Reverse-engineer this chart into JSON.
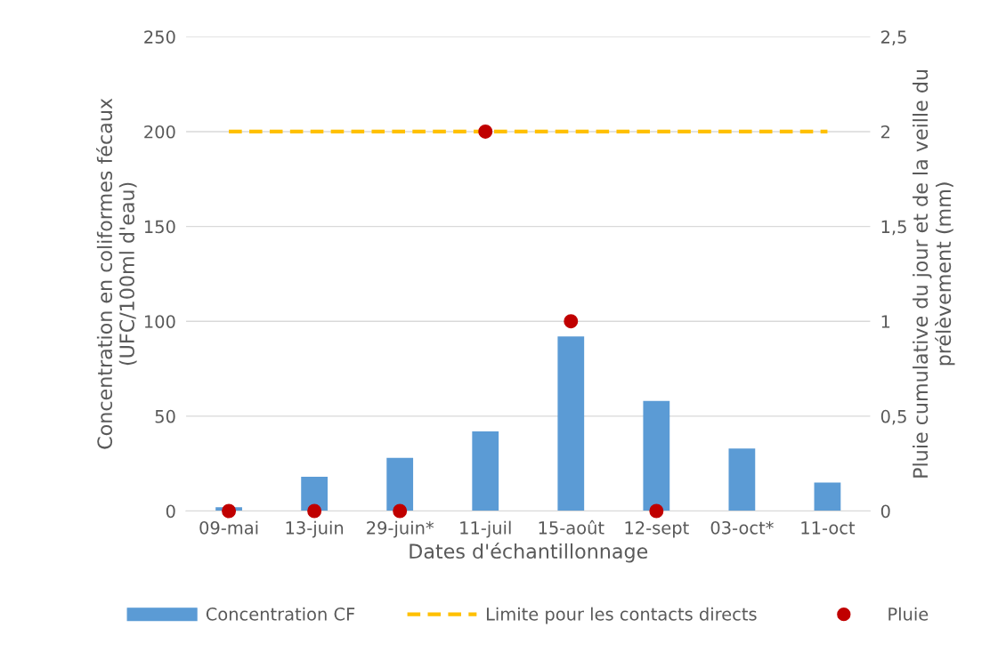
{
  "chart_data": {
    "type": "bar",
    "xlabel": "Dates d'échantillonnage",
    "ylabel": "Concentration en coliformes fécaux\n(UFC/100ml d'eau)",
    "y2label": "Pluie cumulative du jour et de la veille du\nprélèvement (mm)",
    "categories": [
      "09-mai",
      "13-juin",
      "29-juin*",
      "11-juil",
      "15-août",
      "12-sept",
      "03-oct*",
      "11-oct"
    ],
    "series": [
      {
        "name": "Concentration CF",
        "color": "#5b9bd5",
        "values": [
          2,
          18,
          28,
          42,
          92,
          58,
          33,
          15
        ]
      },
      {
        "name": "Limite pour les contacts directs",
        "type": "line",
        "color": "#ffc000",
        "line_style": "dashed",
        "marker": "none",
        "values": [
          200,
          200,
          200,
          200,
          200,
          200,
          200,
          200
        ]
      },
      {
        "name": "Pluie",
        "type": "scatter",
        "color": "#c00000",
        "marker": "circle",
        "axis": "y2",
        "values": [
          0,
          0,
          0,
          2,
          1,
          0,
          null,
          null
        ]
      }
    ],
    "ylim": [
      0,
      250
    ],
    "yticks": [
      0,
      50,
      100,
      150,
      200,
      250
    ],
    "y2lim": [
      0,
      2.5
    ],
    "y2ticks": [
      0,
      {
        "value": 0.5,
        "label": "0,5"
      },
      1,
      {
        "value": 1.5,
        "label": "1,5"
      },
      2,
      {
        "value": 2.5,
        "label": "2,5"
      }
    ],
    "grid": "y",
    "legend": "bottom"
  }
}
